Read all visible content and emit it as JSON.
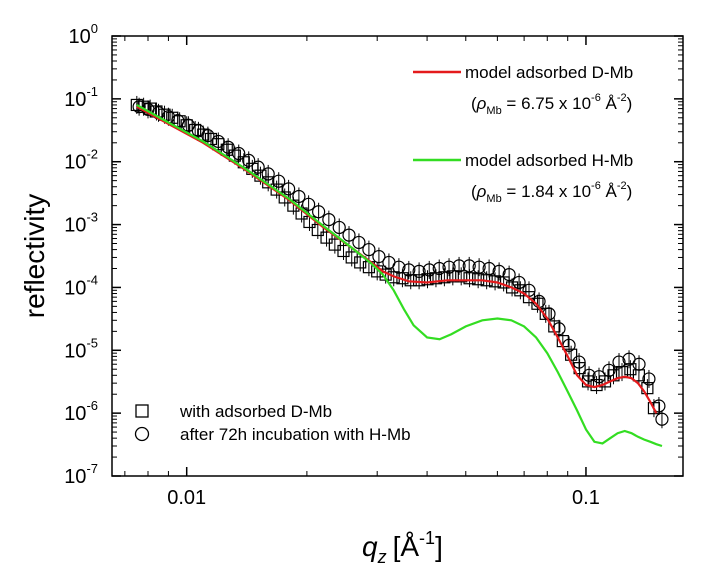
{
  "chart_data": {
    "type": "scatter",
    "xlabel": "q",
    "xlabel_sub": "z",
    "xlabel_unit": "[Å",
    "xlabel_unit_sup": "-1",
    "xlabel_unit_close": "]",
    "ylabel": "reflectivity",
    "xscale": "log",
    "yscale": "log",
    "xlim": [
      0.0065,
      0.175
    ],
    "ylim": [
      1e-07,
      1
    ],
    "x_ticks": [
      {
        "value": 0.01,
        "label": "0.01"
      },
      {
        "value": 0.1,
        "label": "0.1"
      }
    ],
    "y_ticks": [
      {
        "value": 1,
        "base": "10",
        "exp": "0"
      },
      {
        "value": 0.1,
        "base": "10",
        "exp": "-1"
      },
      {
        "value": 0.01,
        "base": "10",
        "exp": "-2"
      },
      {
        "value": 0.001,
        "base": "10",
        "exp": "-3"
      },
      {
        "value": 0.0001,
        "base": "10",
        "exp": "-4"
      },
      {
        "value": 1e-05,
        "base": "10",
        "exp": "-5"
      },
      {
        "value": 1e-06,
        "base": "10",
        "exp": "-6"
      },
      {
        "value": 1e-07,
        "base": "10",
        "exp": "-7"
      }
    ],
    "legend": {
      "lines": [
        {
          "name": "model adsorbed D-Mb",
          "color": "#e41a1c",
          "note_prefix": "(",
          "note_rho": "ρ",
          "note_sub": "Mb",
          "note_mid": " = 6.75 x 10",
          "note_sup": "-6",
          "note_suffix": " Å",
          "note_sup2": "-2",
          "note_close": ")"
        },
        {
          "name": "model adsorbed H-Mb",
          "color": "#33dd22",
          "note_prefix": "(",
          "note_rho": "ρ",
          "note_sub": "Mb",
          "note_mid": " = 1.84 x 10",
          "note_sup": "-6",
          "note_suffix": " Å",
          "note_sup2": "-2",
          "note_close": ")"
        }
      ],
      "markers": [
        {
          "name": "with adsorbed D-Mb",
          "marker": "square"
        },
        {
          "name": "after 72h incubation with H-Mb",
          "marker": "circle"
        }
      ]
    },
    "series": [
      {
        "name": "model adsorbed D-Mb",
        "kind": "line",
        "color": "#e41a1c",
        "x": [
          0.0075,
          0.009,
          0.011,
          0.014,
          0.018,
          0.022,
          0.026,
          0.029,
          0.031,
          0.033,
          0.036,
          0.04,
          0.045,
          0.05,
          0.055,
          0.06,
          0.065,
          0.07,
          0.075,
          0.08,
          0.085,
          0.09,
          0.095,
          0.1,
          0.105,
          0.11,
          0.115,
          0.12,
          0.125,
          0.13,
          0.135,
          0.14,
          0.145,
          0.15
        ],
        "y": [
          0.075,
          0.04,
          0.02,
          0.0075,
          0.0025,
          0.0009,
          0.00042,
          0.00025,
          0.00018,
          0.00015,
          0.000125,
          0.00012,
          0.00013,
          0.00013,
          0.00013,
          0.00012,
          0.0001,
          8e-05,
          5.5e-05,
          3.2e-05,
          1.6e-05,
          8e-06,
          4e-06,
          2.8e-06,
          2.6e-06,
          2.8e-06,
          3.2e-06,
          3.6e-06,
          3.8e-06,
          3.6e-06,
          3e-06,
          2.2e-06,
          1.5e-06,
          1e-06
        ]
      },
      {
        "name": "model adsorbed H-Mb",
        "kind": "line",
        "color": "#33dd22",
        "x": [
          0.0075,
          0.009,
          0.011,
          0.014,
          0.018,
          0.022,
          0.026,
          0.029,
          0.031,
          0.033,
          0.035,
          0.037,
          0.04,
          0.043,
          0.046,
          0.05,
          0.055,
          0.06,
          0.065,
          0.07,
          0.075,
          0.08,
          0.085,
          0.09,
          0.095,
          0.1,
          0.105,
          0.11,
          0.115,
          0.12,
          0.125,
          0.13,
          0.135,
          0.14,
          0.145,
          0.15,
          0.155
        ],
        "y": [
          0.08,
          0.042,
          0.021,
          0.0078,
          0.0026,
          0.00095,
          0.00042,
          0.00024,
          0.00016,
          9e-05,
          4.5e-05,
          2.5e-05,
          1.6e-05,
          1.5e-05,
          1.8e-05,
          2.4e-05,
          3e-05,
          3.2e-05,
          3e-05,
          2.4e-05,
          1.6e-05,
          9e-06,
          4.5e-06,
          2.2e-06,
          1.1e-06,
          5.5e-07,
          3.5e-07,
          3.3e-07,
          4e-07,
          4.8e-07,
          5.2e-07,
          4.8e-07,
          4.2e-07,
          3.8e-07,
          3.5e-07,
          3.2e-07,
          3e-07
        ]
      },
      {
        "name": "with adsorbed D-Mb",
        "kind": "marker",
        "marker": "square",
        "x": [
          0.0075,
          0.0078,
          0.0081,
          0.0084,
          0.0088,
          0.0092,
          0.0096,
          0.01,
          0.0105,
          0.011,
          0.0115,
          0.012,
          0.0126,
          0.0132,
          0.0139,
          0.0146,
          0.0153,
          0.016,
          0.0168,
          0.0176,
          0.0185,
          0.0194,
          0.0203,
          0.0213,
          0.0224,
          0.0235,
          0.0247,
          0.0259,
          0.0272,
          0.0286,
          0.03,
          0.0315,
          0.033,
          0.0347,
          0.0364,
          0.0382,
          0.0401,
          0.0421,
          0.0442,
          0.0464,
          0.0487,
          0.0511,
          0.0537,
          0.0564,
          0.0592,
          0.0622,
          0.0653,
          0.0685,
          0.072,
          0.0756,
          0.0793,
          0.0833,
          0.0875,
          0.0918,
          0.0964,
          0.1012,
          0.1063,
          0.1116,
          0.1172,
          0.1231,
          0.1292,
          0.1357,
          0.1425,
          0.148
        ],
        "y": [
          0.08,
          0.075,
          0.07,
          0.063,
          0.056,
          0.05,
          0.044,
          0.038,
          0.032,
          0.027,
          0.023,
          0.019,
          0.0155,
          0.0125,
          0.0098,
          0.0077,
          0.006,
          0.0047,
          0.0036,
          0.0027,
          0.002,
          0.0015,
          0.0011,
          0.00082,
          0.00062,
          0.00048,
          0.00038,
          0.0003,
          0.00025,
          0.00021,
          0.00018,
          0.00016,
          0.000145,
          0.00014,
          0.00013,
          0.00013,
          0.000135,
          0.00014,
          0.000145,
          0.00015,
          0.00015,
          0.00014,
          0.000135,
          0.00013,
          0.000125,
          0.00012,
          0.0001,
          9e-05,
          7e-05,
          5.5e-05,
          3.8e-05,
          2.4e-05,
          1.4e-05,
          8.5e-06,
          5.2e-06,
          3.2e-06,
          2.8e-06,
          3.2e-06,
          4e-06,
          4.5e-06,
          5e-06,
          4e-06,
          2.5e-06,
          1.2e-06
        ]
      },
      {
        "name": "after 72h incubation with H-Mb",
        "kind": "marker",
        "marker": "circle",
        "x": [
          0.0076,
          0.008,
          0.0085,
          0.009,
          0.0095,
          0.0101,
          0.0107,
          0.0113,
          0.012,
          0.0127,
          0.0135,
          0.0143,
          0.0151,
          0.016,
          0.017,
          0.018,
          0.0191,
          0.0202,
          0.0214,
          0.0227,
          0.0241,
          0.0255,
          0.027,
          0.0286,
          0.0303,
          0.0321,
          0.034,
          0.036,
          0.0382,
          0.0405,
          0.0429,
          0.0454,
          0.0481,
          0.051,
          0.054,
          0.0572,
          0.0606,
          0.0642,
          0.068,
          0.072,
          0.0763,
          0.0808,
          0.0856,
          0.0907,
          0.0961,
          0.1018,
          0.1078,
          0.1142,
          0.121,
          0.1282,
          0.1358,
          0.1438,
          0.1523,
          0.155
        ],
        "y": [
          0.075,
          0.068,
          0.06,
          0.052,
          0.045,
          0.038,
          0.031,
          0.026,
          0.021,
          0.017,
          0.0135,
          0.0105,
          0.0082,
          0.0064,
          0.0049,
          0.0037,
          0.0028,
          0.0021,
          0.0016,
          0.0012,
          0.0009,
          0.00068,
          0.00052,
          0.0004,
          0.00031,
          0.00025,
          0.00021,
          0.00019,
          0.00018,
          0.00019,
          0.0002,
          0.00021,
          0.00022,
          0.00022,
          0.00021,
          0.0002,
          0.00018,
          0.00016,
          0.00012,
          9e-05,
          6e-05,
          3.8e-05,
          2.2e-05,
          1.2e-05,
          6.5e-06,
          4e-06,
          3.8e-06,
          4.8e-06,
          6.5e-06,
          7.2e-06,
          6e-06,
          3.5e-06,
          1.3e-06,
          8e-07
        ]
      }
    ]
  }
}
